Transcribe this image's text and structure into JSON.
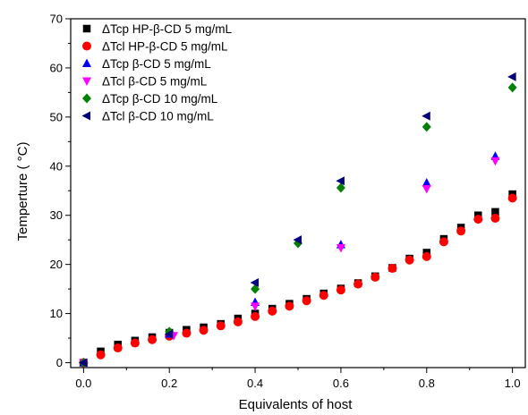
{
  "chart_data": {
    "type": "scatter",
    "xlabel": "Equivalents of host",
    "ylabel": "Temperture ( °C)",
    "xlim": [
      -0.03,
      1.03
    ],
    "ylim": [
      -1,
      70
    ],
    "xticks": [
      "0.0",
      "0.2",
      "0.4",
      "0.6",
      "0.8",
      "1.0"
    ],
    "xtick_values": [
      0,
      0.2,
      0.4,
      0.6,
      0.8,
      1.0
    ],
    "yticks": [
      "0",
      "10",
      "20",
      "30",
      "40",
      "50",
      "60",
      "70"
    ],
    "ytick_values": [
      0,
      10,
      20,
      30,
      40,
      50,
      60,
      70
    ],
    "grid": false,
    "legend_position": "top-left",
    "series": [
      {
        "name": "ΔTcp HP-β-CD 5 mg/mL",
        "marker": "square",
        "color": "#000000",
        "x": [
          0,
          0.04,
          0.08,
          0.12,
          0.16,
          0.2,
          0.24,
          0.28,
          0.32,
          0.36,
          0.4,
          0.44,
          0.48,
          0.52,
          0.56,
          0.6,
          0.64,
          0.68,
          0.72,
          0.76,
          0.8,
          0.84,
          0.88,
          0.92,
          0.96,
          1.0
        ],
        "y": [
          0,
          2.3,
          3.7,
          4.5,
          5.2,
          6.1,
          6.7,
          7.2,
          7.9,
          9.0,
          10.0,
          11.0,
          12.0,
          13.0,
          14.1,
          15.1,
          16.2,
          17.6,
          19.3,
          21.2,
          22.4,
          25.2,
          27.5,
          30.0,
          30.7,
          34.3
        ]
      },
      {
        "name": "ΔTcl  HP-β-CD 5 mg/mL",
        "marker": "circle",
        "color": "#ff0000",
        "x": [
          0,
          0.04,
          0.08,
          0.12,
          0.16,
          0.2,
          0.24,
          0.28,
          0.32,
          0.36,
          0.4,
          0.44,
          0.48,
          0.52,
          0.56,
          0.6,
          0.64,
          0.68,
          0.72,
          0.76,
          0.8,
          0.84,
          0.88,
          0.92,
          0.96,
          1.0
        ],
        "y": [
          0,
          1.6,
          3.0,
          4.0,
          4.7,
          5.4,
          6.0,
          6.6,
          7.5,
          8.3,
          9.4,
          10.5,
          11.5,
          12.6,
          13.7,
          14.8,
          16.0,
          17.4,
          19.2,
          20.9,
          21.6,
          24.6,
          26.8,
          29.2,
          29.4,
          33.5
        ]
      },
      {
        "name": "ΔTcp β-CD 5 mg/mL",
        "marker": "triangle-up",
        "color": "#0000ff",
        "x": [
          0,
          0.2,
          0.4,
          0.6,
          0.8,
          0.96
        ],
        "y": [
          0,
          5.8,
          12.3,
          24.0,
          36.6,
          42.0
        ]
      },
      {
        "name": "ΔTcl  β-CD 5 mg/mL",
        "marker": "triangle-down",
        "color": "#ff00ff",
        "x": [
          0,
          0.21,
          0.4,
          0.6,
          0.8,
          0.96
        ],
        "y": [
          0,
          5.5,
          11.5,
          23.4,
          35.4,
          41.1
        ]
      },
      {
        "name": "ΔTcp β-CD 10 mg/mL",
        "marker": "diamond",
        "color": "#008000",
        "x": [
          0,
          0.2,
          0.4,
          0.5,
          0.6,
          0.8,
          1.0
        ],
        "y": [
          0,
          6.3,
          15.0,
          24.3,
          35.6,
          48.0,
          56.0
        ]
      },
      {
        "name": "ΔTcl  β-CD 10 mg/mL",
        "marker": "triangle-left",
        "color": "#000080",
        "x": [
          0,
          0.2,
          0.4,
          0.5,
          0.6,
          0.8,
          1.0
        ],
        "y": [
          0,
          5.8,
          16.3,
          25.0,
          37.0,
          50.2,
          58.2
        ]
      }
    ]
  }
}
